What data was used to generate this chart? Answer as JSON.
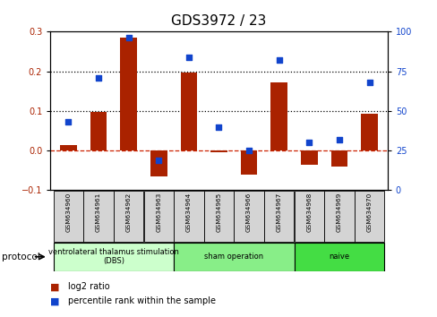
{
  "title": "GDS3972 / 23",
  "samples": [
    "GSM634960",
    "GSM634961",
    "GSM634962",
    "GSM634963",
    "GSM634964",
    "GSM634965",
    "GSM634966",
    "GSM634967",
    "GSM634968",
    "GSM634969",
    "GSM634970"
  ],
  "log2_ratio": [
    0.015,
    0.097,
    0.285,
    -0.065,
    0.197,
    -0.005,
    -0.06,
    0.173,
    -0.035,
    -0.04,
    0.093
  ],
  "pct_rank": [
    43,
    71,
    96,
    19,
    84,
    40,
    25,
    82,
    30,
    32,
    68
  ],
  "bar_color": "#aa2200",
  "scatter_color": "#1144cc",
  "ylim_left": [
    -0.1,
    0.3
  ],
  "ylim_right": [
    0,
    100
  ],
  "yticks_left": [
    -0.1,
    0.0,
    0.1,
    0.2,
    0.3
  ],
  "yticks_right": [
    0,
    25,
    50,
    75,
    100
  ],
  "hlines": [
    0.1,
    0.2
  ],
  "zero_line_color": "#cc2200",
  "protocol_groups": [
    {
      "label": "ventrolateral thalamus stimulation\n(DBS)",
      "start": 0,
      "end": 4,
      "color": "#ccffcc"
    },
    {
      "label": "sham operation",
      "start": 4,
      "end": 8,
      "color": "#88ee88"
    },
    {
      "label": "naive",
      "start": 8,
      "end": 11,
      "color": "#44dd44"
    }
  ],
  "protocol_label": "protocol",
  "legend_bar_label": "log2 ratio",
  "legend_scatter_label": "percentile rank within the sample",
  "background_color": "#ffffff",
  "plot_bg": "#ffffff",
  "title_fontsize": 11,
  "tick_fontsize": 7,
  "label_fontsize": 7.5
}
